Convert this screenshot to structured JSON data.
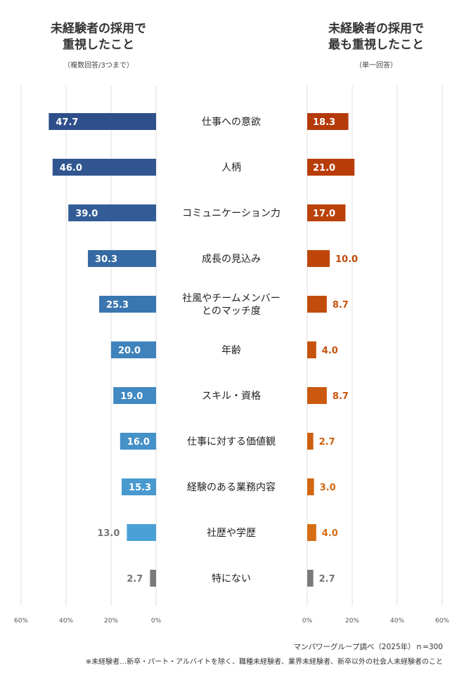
{
  "left_header": {
    "title_line1": "未経験者の採用で",
    "title_line2": "重視したこと",
    "note": "（複数回答/3つまで）"
  },
  "right_header": {
    "title_line1": "未経験者の採用で",
    "title_line2": "最も重視したこと",
    "note": "（単一回答）"
  },
  "footer": {
    "source": "マンパワーグループ調べ（2025年）ｎ=300",
    "note": "※未経験者…新卒・パート・アルバイトを除く、職種未経験者、業界未経験者、新卒以外の社会人未経験者のこと"
  },
  "chart_data": [
    {
      "type": "bar",
      "orientation": "horizontal",
      "direction": "right-to-left",
      "title": "未経験者の採用で重視したこと（複数回答/3つまで）",
      "categories": [
        "仕事への意欲",
        "人柄",
        "コミュニケーション力",
        "成長の見込み",
        "社風やチームメンバーとのマッチ度",
        "年齢",
        "スキル・資格",
        "仕事に対する価値観",
        "経験のある業務内容",
        "社歴や学歴",
        "特にない"
      ],
      "category_lines": [
        [
          "仕事への意欲"
        ],
        [
          "人柄"
        ],
        [
          "コミュニケーション力"
        ],
        [
          "成長の見込み"
        ],
        [
          "社風やチームメンバー",
          "とのマッチ度"
        ],
        [
          "年齢"
        ],
        [
          "スキル・資格"
        ],
        [
          "仕事に対する価値観"
        ],
        [
          "経験のある業務内容"
        ],
        [
          "社歴や学歴"
        ],
        [
          "特にない"
        ]
      ],
      "values": [
        47.7,
        46.0,
        39.0,
        30.3,
        25.3,
        20.0,
        19.0,
        16.0,
        15.3,
        13.0,
        2.7
      ],
      "value_labels": [
        "47.7",
        "46.0",
        "39.0",
        "30.3",
        "25.3",
        "20.0",
        "19.0",
        "16.0",
        "15.3",
        "13.0",
        "2.7"
      ],
      "colors": [
        "#2e4f8a",
        "#30558f",
        "#335c96",
        "#356aa3",
        "#3a76b0",
        "#3f82bc",
        "#4089c2",
        "#4591c9",
        "#4899cf",
        "#4ba1d5",
        "#7a7a7a"
      ],
      "xlim": [
        0,
        60
      ],
      "xticks": [
        "60%",
        "40%",
        "20%",
        "0%"
      ],
      "grid": true
    },
    {
      "type": "bar",
      "orientation": "horizontal",
      "direction": "left-to-right",
      "title": "未経験者の採用で最も重視したこと（単一回答）",
      "categories": [
        "仕事への意欲",
        "人柄",
        "コミュニケーション力",
        "成長の見込み",
        "社風やチームメンバーとのマッチ度",
        "年齢",
        "スキル・資格",
        "仕事に対する価値観",
        "経験のある業務内容",
        "社歴や学歴",
        "特にない"
      ],
      "values": [
        18.3,
        21.0,
        17.0,
        10.0,
        8.7,
        4.0,
        8.7,
        2.7,
        3.0,
        4.0,
        2.7
      ],
      "value_labels": [
        "18.3",
        "21.0",
        "17.0",
        "10.0",
        "8.7",
        "4.0",
        "8.7",
        "2.7",
        "3.0",
        "4.0",
        "2.7"
      ],
      "colors": [
        "#b53a0a",
        "#b83d0a",
        "#bb410b",
        "#be460b",
        "#c24c0c",
        "#c6520d",
        "#ca580e",
        "#ce5f10",
        "#d26612",
        "#d66d14",
        "#7a7a7a"
      ],
      "label_colors": [
        "#ffffff",
        "#ffffff",
        "#ffffff",
        "#c2490b",
        "#c6520d",
        "#c6520d",
        "#c6520d",
        "#ce5f10",
        "#d26612",
        "#d66d14",
        "#777777"
      ],
      "xlim": [
        0,
        60
      ],
      "xticks": [
        "0%",
        "20%",
        "40%",
        "60%"
      ],
      "grid": true
    }
  ]
}
